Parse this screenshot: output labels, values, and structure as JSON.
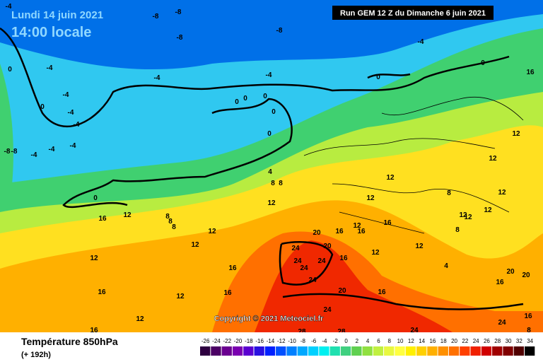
{
  "header": {
    "date": "Lundi 14 juin 2021",
    "time": "14:00 locale",
    "run": "Run GEM 12 Z du Dimanche 6 juin 2021"
  },
  "copyright": "Copyright © 2021 Meteociel.fr",
  "footer": {
    "title": "Température 850hPa",
    "lead": "(+ 192h)"
  },
  "map": {
    "labels": [
      "-4",
      "-8",
      "-8",
      "-8",
      "-8",
      "0",
      "-4",
      "-4",
      "-4",
      "-4",
      "0",
      "-8",
      "-8",
      "-4",
      "-4",
      "-4",
      "-4",
      "-4",
      "0",
      "-4",
      "0",
      "0",
      "0",
      "0",
      "0",
      "0",
      "4",
      "8",
      "8",
      "12",
      "0",
      "12",
      "16",
      "8",
      "8",
      "8",
      "12",
      "12",
      "12",
      "16",
      "16",
      "16",
      "12",
      "12",
      "16",
      "20",
      "16",
      "24",
      "24",
      "24",
      "24",
      "20",
      "16",
      "24",
      "20",
      "24",
      "28",
      "28",
      "24",
      "16",
      "12",
      "12",
      "16",
      "16",
      "12",
      "12",
      "8",
      "12",
      "12",
      "12",
      "12",
      "8",
      "12",
      "4",
      "12",
      "12",
      "16",
      "20",
      "20",
      "16",
      "16",
      "24",
      "8"
    ]
  },
  "colorbar": {
    "ticks": [
      -26,
      -24,
      -22,
      -20,
      -18,
      -16,
      -14,
      -12,
      -10,
      -8,
      -6,
      -4,
      -2,
      0,
      2,
      4,
      6,
      8,
      10,
      12,
      14,
      16,
      18,
      20,
      22,
      24,
      26,
      28,
      30,
      32,
      34
    ],
    "colors": [
      "#2e0040",
      "#4b0064",
      "#6a0090",
      "#7a00b0",
      "#5a00d0",
      "#2a10e0",
      "#0020ff",
      "#0050ff",
      "#0080ff",
      "#00a8ff",
      "#00d0ff",
      "#00f0f0",
      "#20e0b0",
      "#40d080",
      "#60d050",
      "#90e040",
      "#c0f040",
      "#e8f840",
      "#ffff40",
      "#fff000",
      "#ffd000",
      "#ffb000",
      "#ff9000",
      "#ff7000",
      "#ff4000",
      "#f02000",
      "#d00000",
      "#a00000",
      "#800000",
      "#500000",
      "#000000"
    ]
  }
}
